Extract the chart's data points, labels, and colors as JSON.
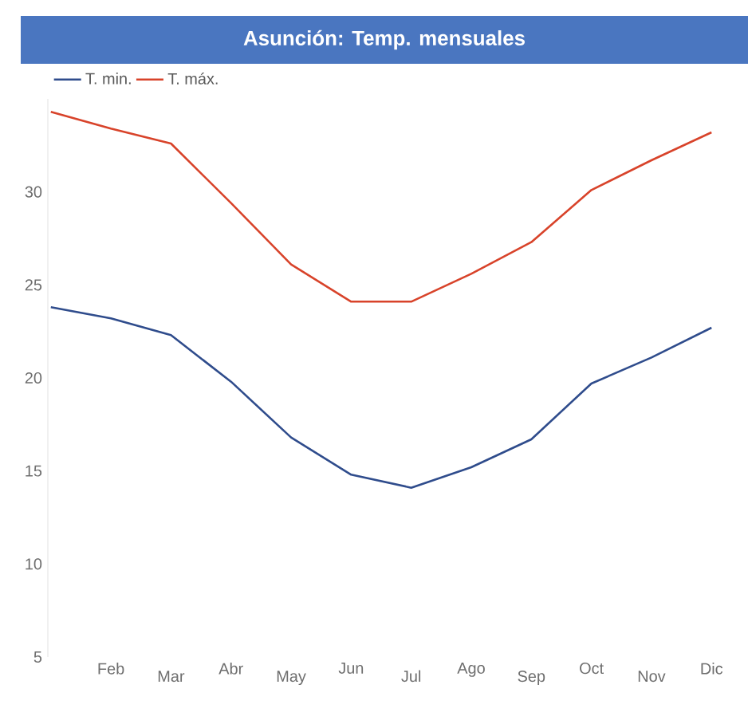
{
  "chart_data": {
    "type": "line",
    "title": "Asunción: Temp. mensuales",
    "categories": [
      null,
      "Feb",
      "Mar",
      "Abr",
      "May",
      "Jun",
      "Jul",
      "Ago",
      "Sep",
      "Oct",
      "Nov",
      "Dic"
    ],
    "series": [
      {
        "name": "T. min.",
        "color": "#2f4c8c",
        "values": [
          23.8,
          23.2,
          22.3,
          19.8,
          16.8,
          14.8,
          14.1,
          15.2,
          16.7,
          19.7,
          21.1,
          22.7
        ]
      },
      {
        "name": "T. máx.",
        "color": "#d8432a",
        "values": [
          34.3,
          33.4,
          32.6,
          29.4,
          26.1,
          24.1,
          24.1,
          25.6,
          27.3,
          30.1,
          31.7,
          33.2
        ]
      }
    ],
    "ylim": [
      5,
      35
    ],
    "yticks": [
      5,
      10,
      15,
      20,
      25,
      30
    ],
    "legend": "top left",
    "marker": "none",
    "line_style": "solid"
  }
}
